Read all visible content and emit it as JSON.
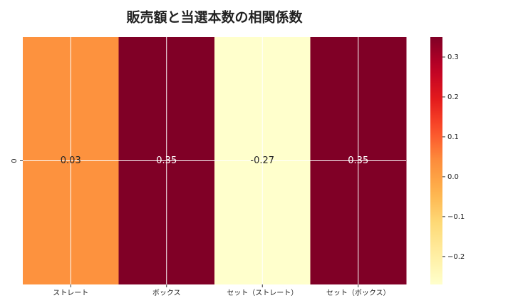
{
  "chart_data": {
    "type": "heatmap",
    "title": "販売額と当選本数の相関係数",
    "x_categories": [
      "ストレート",
      "ボックス",
      "セット（ストレート）",
      "セット（ボックス）"
    ],
    "y_categories": [
      "0"
    ],
    "values": [
      [
        0.03,
        0.35,
        -0.27,
        0.35
      ]
    ],
    "cmap": "YlOrRd",
    "clim": [
      -0.27,
      0.35
    ],
    "cticks": [
      {
        "value": -0.2,
        "label": "−0.2"
      },
      {
        "value": -0.1,
        "label": "−0.1"
      },
      {
        "value": 0,
        "label": "0.0"
      },
      0.1,
      0.2,
      0.3
    ],
    "grid": true
  }
}
